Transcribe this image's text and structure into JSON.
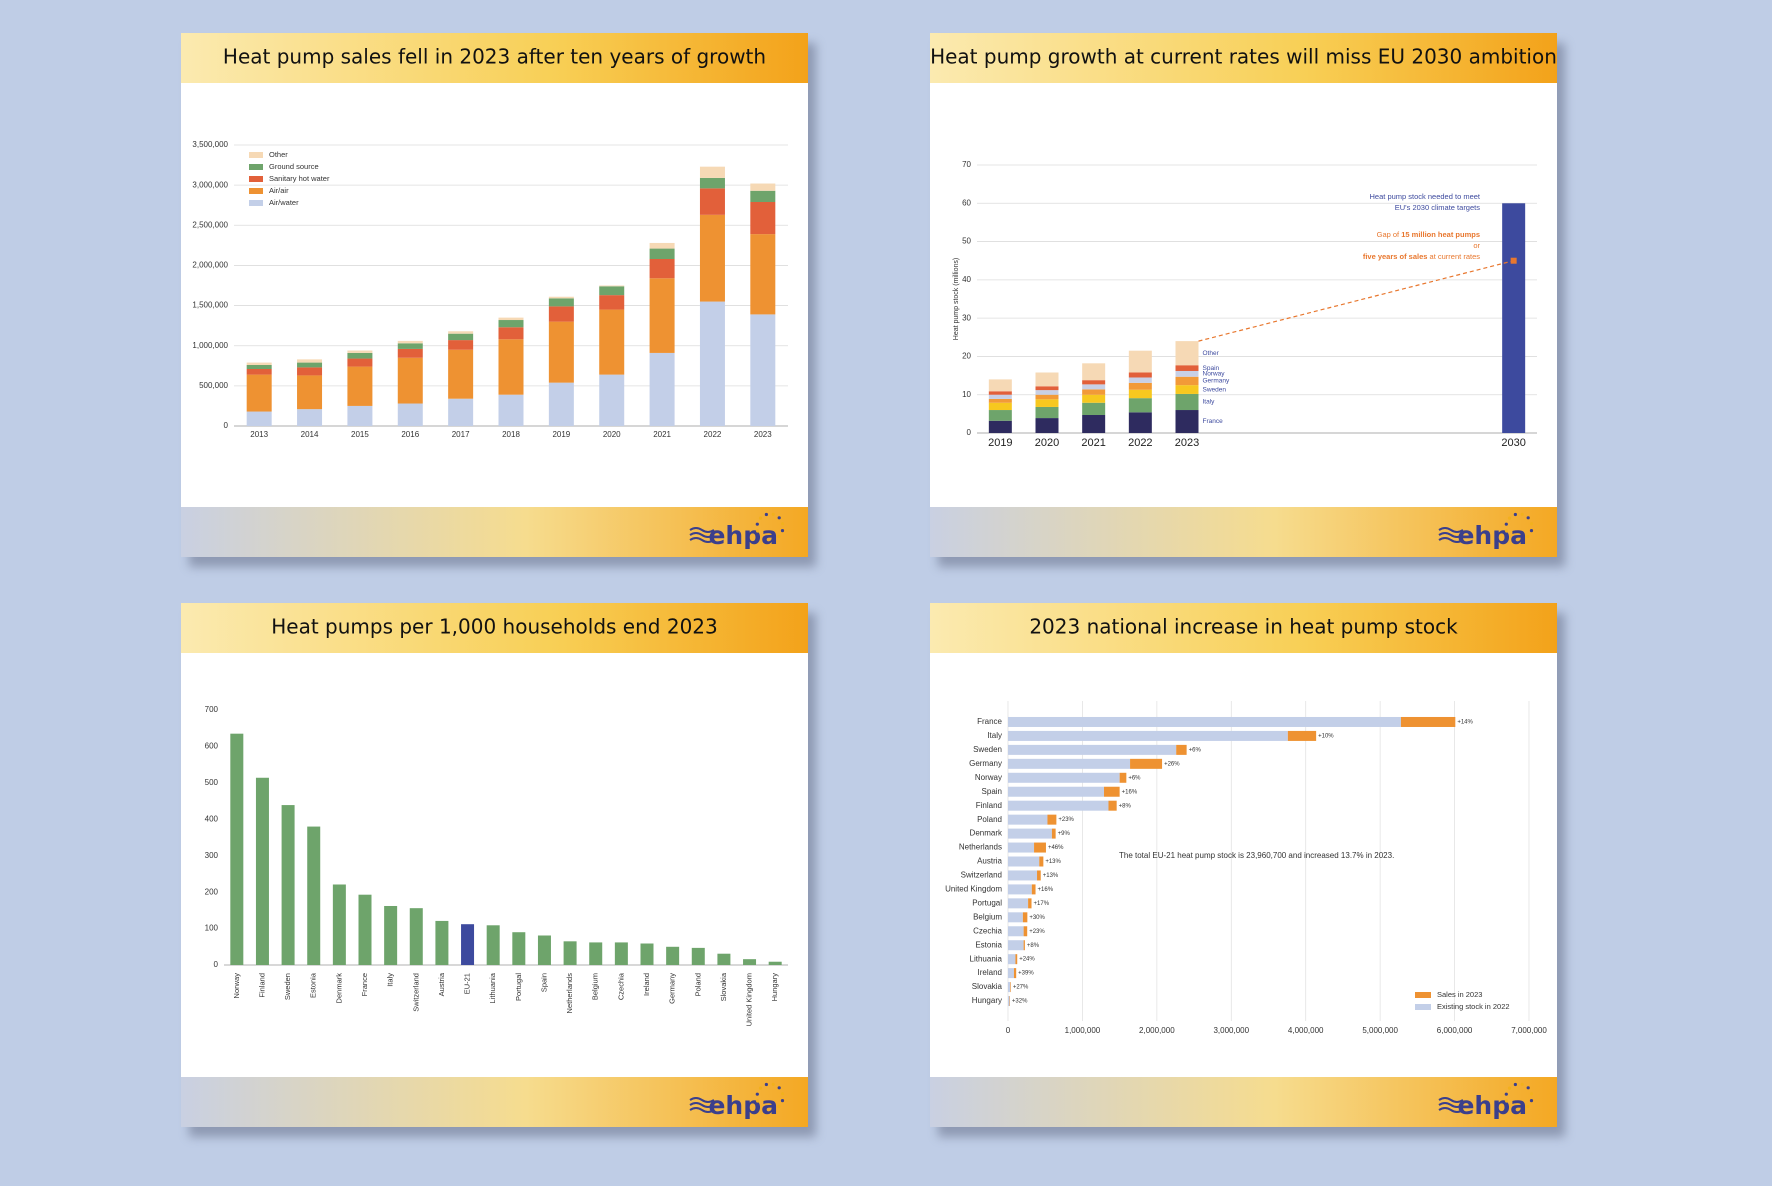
{
  "logo": "ehpa",
  "chart_data": [
    {
      "type": "bar",
      "stacked": true,
      "title": "Heat pump sales fell in 2023 after ten years of growth",
      "categories": [
        "2013",
        "2014",
        "2015",
        "2016",
        "2017",
        "2018",
        "2019",
        "2020",
        "2021",
        "2022",
        "2023"
      ],
      "series": [
        {
          "name": "Air/water",
          "color": "#c3cfe8",
          "values": [
            180000,
            210000,
            250000,
            280000,
            340000,
            390000,
            540000,
            640000,
            910000,
            1550000,
            1390000
          ]
        },
        {
          "name": "Air/air",
          "color": "#ee9232",
          "values": [
            460000,
            420000,
            490000,
            570000,
            610000,
            690000,
            760000,
            810000,
            930000,
            1080000,
            1000000
          ]
        },
        {
          "name": "Sanitary hot water",
          "color": "#e2603a",
          "values": [
            70000,
            100000,
            100000,
            110000,
            120000,
            150000,
            190000,
            180000,
            240000,
            330000,
            400000
          ]
        },
        {
          "name": "Ground source",
          "color": "#6ea46b",
          "values": [
            50000,
            60000,
            70000,
            70000,
            80000,
            90000,
            100000,
            110000,
            130000,
            130000,
            140000
          ]
        },
        {
          "name": "Other",
          "color": "#f6d9b5",
          "values": [
            30000,
            40000,
            30000,
            30000,
            30000,
            30000,
            20000,
            10000,
            70000,
            140000,
            90000
          ]
        }
      ],
      "ylim": [
        0,
        3500000
      ],
      "yticks": [
        0,
        {
          "value": 500000,
          "label": "500,000"
        },
        {
          "value": 1000000,
          "label": "1,000,000"
        },
        {
          "value": 1500000,
          "label": "1,500,000"
        },
        {
          "value": 2000000,
          "label": "2,000,000"
        },
        {
          "value": 2500000,
          "label": "2,500,000"
        },
        {
          "value": 3000000,
          "label": "3,000,000"
        },
        {
          "value": 3500000,
          "label": "3,500,000"
        }
      ],
      "grid": true,
      "legend": "top-left"
    },
    {
      "type": "bar",
      "stacked": true,
      "title": "Heat pump growth at current rates will miss EU 2030 ambition",
      "ylabel": "Heat pump stock (millions)",
      "x": [
        2019,
        2020,
        2021,
        2022,
        2023
      ],
      "series": [
        {
          "name": "France",
          "color": "#2e2b5f",
          "values": [
            3.2,
            3.9,
            4.7,
            5.4,
            6.0
          ]
        },
        {
          "name": "Italy",
          "color": "#6ea46b",
          "values": [
            2.8,
            2.9,
            3.2,
            3.7,
            4.2
          ]
        },
        {
          "name": "Sweden",
          "color": "#f7c81f",
          "values": [
            1.9,
            2.0,
            2.1,
            2.2,
            2.3
          ]
        },
        {
          "name": "Germany",
          "color": "#f29a38",
          "values": [
            1.0,
            1.2,
            1.4,
            1.8,
            2.2
          ]
        },
        {
          "name": "Norway",
          "color": "#c8d0e6",
          "values": [
            1.1,
            1.2,
            1.3,
            1.4,
            1.5
          ]
        },
        {
          "name": "Spain",
          "color": "#e2603a",
          "values": [
            0.9,
            1.0,
            1.1,
            1.3,
            1.5
          ]
        },
        {
          "name": "Other",
          "color": "#f6d9b5",
          "values": [
            3.1,
            3.6,
            4.4,
            5.7,
            6.3
          ]
        }
      ],
      "target": {
        "x": 2030,
        "value": 60,
        "color": "#3d4a9e"
      },
      "projection": {
        "x": 2030,
        "value": 45,
        "color": "#e8772e"
      },
      "target_note": [
        "Heat pump stock needed to meet",
        "EU's 2030 climate targets"
      ],
      "gap_note": [
        [
          "Gap of ",
          "15 million heat pumps"
        ],
        [
          "or"
        ],
        [
          "five years of sales",
          " at current rates"
        ]
      ],
      "xlim": [
        2018.5,
        2030.5
      ],
      "xticks": [
        2019,
        2020,
        2021,
        2022,
        2023,
        2030
      ],
      "ylim": [
        0,
        70
      ],
      "yticks": [
        0,
        10,
        20,
        30,
        40,
        50,
        60,
        70
      ],
      "grid": true
    },
    {
      "type": "bar",
      "title": "Heat pumps per 1,000 households end 2023",
      "categories": [
        "Norway",
        "Finland",
        "Sweden",
        "Estonia",
        "Denmark",
        "France",
        "Italy",
        "Switzerland",
        "Austria",
        "EU-21",
        "Lithuania",
        "Portugal",
        "Spain",
        "Netherlands",
        "Belgium",
        "Czechia",
        "Ireland",
        "Germany",
        "Poland",
        "Slovakia",
        "United Kingdom",
        "Hungary"
      ],
      "values": [
        635,
        514,
        439,
        380,
        221,
        193,
        162,
        156,
        121,
        112,
        109,
        90,
        81,
        65,
        62,
        62,
        59,
        50,
        47,
        31,
        16,
        9
      ],
      "colors": [
        "#6ea46b",
        "#6ea46b",
        "#6ea46b",
        "#6ea46b",
        "#6ea46b",
        "#6ea46b",
        "#6ea46b",
        "#6ea46b",
        "#6ea46b",
        "#3d4a9e",
        "#6ea46b",
        "#6ea46b",
        "#6ea46b",
        "#6ea46b",
        "#6ea46b",
        "#6ea46b",
        "#6ea46b",
        "#6ea46b",
        "#6ea46b",
        "#6ea46b",
        "#6ea46b",
        "#6ea46b"
      ],
      "ylim": [
        0,
        700
      ],
      "yticks": [
        0,
        100,
        200,
        300,
        400,
        500,
        600,
        700
      ],
      "grid": false
    },
    {
      "type": "hbar",
      "stacked": true,
      "title": "2023 national increase in heat pump stock",
      "categories": [
        "France",
        "Italy",
        "Sweden",
        "Germany",
        "Norway",
        "Spain",
        "Finland",
        "Poland",
        "Denmark",
        "Netherlands",
        "Austria",
        "Switzerland",
        "United Kingdom",
        "Portugal",
        "Belgium",
        "Czechia",
        "Estonia",
        "Lithuania",
        "Ireland",
        "Slovakia",
        "Hungary"
      ],
      "series": [
        {
          "name": "Existing stock in 2022",
          "color": "#c3cfe8",
          "values": [
            5280000,
            3760000,
            2260000,
            1640000,
            1500000,
            1290000,
            1350000,
            530000,
            590000,
            350000,
            420000,
            390000,
            320000,
            270000,
            200000,
            210000,
            210000,
            100000,
            80000,
            30000,
            20000
          ]
        },
        {
          "name": "Sales in 2023",
          "color": "#ee9232",
          "values": [
            730000,
            380000,
            140000,
            430000,
            90000,
            210000,
            110000,
            120000,
            50000,
            160000,
            55000,
            50000,
            50000,
            46000,
            60000,
            48000,
            17000,
            24000,
            30000,
            8000,
            6000
          ]
        }
      ],
      "increase_labels": [
        "+14%",
        "+10%",
        "+6%",
        "+26%",
        "+6%",
        "+16%",
        "+8%",
        "+23%",
        "+9%",
        "+46%",
        "+13%",
        "+13%",
        "+16%",
        "+17%",
        "+30%",
        "+23%",
        "+8%",
        "+24%",
        "+39%",
        "+27%",
        "+32%"
      ],
      "annotation": "The total EU-21 heat pump stock is 23,960,700 and increased 13.7% in 2023.",
      "xlim": [
        0,
        7000000
      ],
      "xticks": [
        0,
        {
          "value": 1000000,
          "label": "1,000,000"
        },
        {
          "value": 2000000,
          "label": "2,000,000"
        },
        {
          "value": 3000000,
          "label": "3,000,000"
        },
        {
          "value": 4000000,
          "label": "4,000,000"
        },
        {
          "value": 5000000,
          "label": "5,000,000"
        },
        {
          "value": 6000000,
          "label": "6,000,000"
        },
        {
          "value": 7000000,
          "label": "7,000,000"
        }
      ],
      "grid": true,
      "legend": "bottom-right"
    }
  ]
}
